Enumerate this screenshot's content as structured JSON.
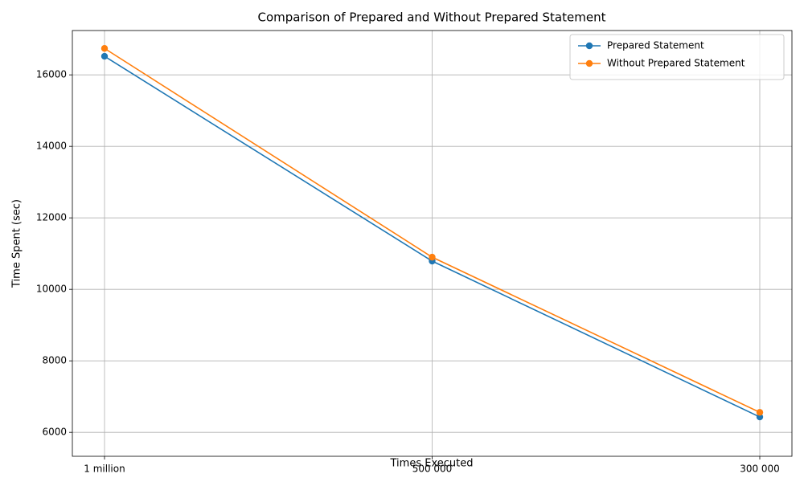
{
  "chart_data": {
    "type": "line",
    "title": "Comparison of Prepared and Without Prepared Statement",
    "x_label": "Times Executed",
    "y_label": "Time Spent (sec)",
    "categories": [
      "1 million",
      "500 000",
      "300 000"
    ],
    "series": [
      {
        "name": "Prepared Statement",
        "color": "#1f77b4",
        "values": [
          16520,
          10790,
          6430
        ]
      },
      {
        "name": "Without Prepared Statement",
        "color": "#ff7f0e",
        "values": [
          16740,
          10900,
          6560
        ]
      }
    ],
    "ylim": [
      5330,
      17240
    ],
    "yticks": [
      6000,
      8000,
      10000,
      12000,
      14000,
      16000
    ],
    "grid": true,
    "legend": "upper-right"
  }
}
